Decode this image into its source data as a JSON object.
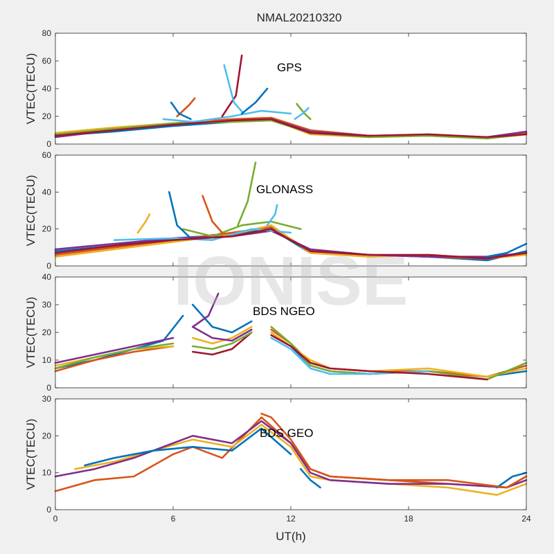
{
  "figure": {
    "title": "NMAL20210320",
    "xlabel": "UT(h)",
    "watermark": "IONISE"
  },
  "colors": [
    "#0072BD",
    "#D95319",
    "#EDB120",
    "#7E2F8E",
    "#77AC30",
    "#4DBEEE",
    "#A2142F"
  ],
  "chart_data": [
    {
      "type": "line",
      "title": "GPS",
      "ylabel": "VTEC(TECU)",
      "xlim": [
        0,
        24
      ],
      "ylim": [
        0,
        80
      ],
      "xticks": [
        0,
        6,
        12,
        18,
        24
      ],
      "yticks": [
        0,
        20,
        40,
        60,
        80
      ],
      "grid": false,
      "series": [
        {
          "color": "#0072BD",
          "x": [
            0,
            3,
            6,
            9,
            11,
            13,
            16,
            19,
            22,
            24
          ],
          "y": [
            6,
            9,
            13,
            16,
            18,
            8,
            6,
            6,
            5,
            8
          ]
        },
        {
          "color": "#D95319",
          "x": [
            0,
            3,
            6,
            9,
            11,
            13,
            16,
            19,
            22,
            24
          ],
          "y": [
            7,
            11,
            15,
            18,
            19,
            10,
            6,
            7,
            5,
            8
          ]
        },
        {
          "color": "#EDB120",
          "x": [
            0,
            3,
            6,
            9,
            11,
            13,
            16,
            19,
            22,
            24
          ],
          "y": [
            8,
            12,
            15,
            17,
            18,
            7,
            5,
            6,
            4,
            7
          ]
        },
        {
          "color": "#7E2F8E",
          "x": [
            0,
            3,
            6,
            9,
            11,
            13,
            16,
            19,
            22,
            24
          ],
          "y": [
            5,
            10,
            14,
            17,
            18,
            9,
            6,
            6,
            5,
            9
          ]
        },
        {
          "color": "#77AC30",
          "x": [
            0,
            3,
            6,
            9,
            11,
            13,
            16,
            19,
            22,
            24
          ],
          "y": [
            7,
            11,
            15,
            16,
            17,
            8,
            5,
            6,
            4,
            7
          ]
        },
        {
          "color": "#4DBEEE",
          "x": [
            5.5,
            7,
            9,
            10.5,
            12
          ],
          "y": [
            18,
            16,
            20,
            24,
            22
          ]
        },
        {
          "color": "#A2142F",
          "x": [
            0,
            3,
            6,
            9,
            11,
            13,
            16,
            19,
            22,
            24
          ],
          "y": [
            6,
            10,
            14,
            17,
            18,
            8,
            6,
            7,
            5,
            7
          ]
        },
        {
          "color": "#A2142F",
          "x": [
            8.5,
            9.2,
            9.5
          ],
          "y": [
            20,
            35,
            64
          ]
        },
        {
          "color": "#4DBEEE",
          "x": [
            8.6,
            9.1,
            9.6
          ],
          "y": [
            57,
            30,
            22
          ]
        },
        {
          "color": "#0072BD",
          "x": [
            9.5,
            10.2,
            10.8
          ],
          "y": [
            22,
            30,
            40
          ]
        },
        {
          "color": "#D95319",
          "x": [
            6.2,
            6.8,
            7.1
          ],
          "y": [
            20,
            28,
            33
          ]
        },
        {
          "color": "#0072BD",
          "x": [
            5.9,
            6.3,
            6.9
          ],
          "y": [
            30,
            22,
            18
          ]
        },
        {
          "color": "#77AC30",
          "x": [
            12.3,
            12.7,
            13
          ],
          "y": [
            29,
            22,
            18
          ]
        },
        {
          "color": "#4DBEEE",
          "x": [
            12.2,
            12.6,
            12.9
          ],
          "y": [
            18,
            22,
            26
          ]
        }
      ]
    },
    {
      "type": "line",
      "title": "GLONASS",
      "ylabel": "VTEC(TECU)",
      "xlim": [
        0,
        24
      ],
      "ylim": [
        0,
        60
      ],
      "xticks": [
        0,
        6,
        12,
        18,
        24
      ],
      "yticks": [
        0,
        20,
        40,
        60
      ],
      "grid": false,
      "series": [
        {
          "color": "#0072BD",
          "x": [
            0,
            3,
            6,
            9,
            11,
            13,
            16,
            19,
            22,
            24
          ],
          "y": [
            8,
            11,
            15,
            17,
            20,
            7,
            6,
            5,
            3,
            8
          ]
        },
        {
          "color": "#D95319",
          "x": [
            0,
            3,
            6,
            9,
            11,
            13,
            16,
            19,
            22,
            24
          ],
          "y": [
            6,
            10,
            14,
            18,
            21,
            8,
            6,
            5,
            4,
            7
          ]
        },
        {
          "color": "#EDB120",
          "x": [
            0,
            3,
            6,
            9,
            11,
            13,
            16,
            19,
            22,
            24
          ],
          "y": [
            5,
            9,
            13,
            17,
            22,
            7,
            5,
            6,
            4,
            6
          ]
        },
        {
          "color": "#7E2F8E",
          "x": [
            0,
            3,
            6,
            9,
            11,
            13,
            16,
            19,
            22,
            24
          ],
          "y": [
            9,
            12,
            15,
            16,
            19,
            9,
            6,
            5,
            5,
            7
          ]
        },
        {
          "color": "#77AC30",
          "x": [
            6.5,
            8,
            9.5,
            11,
            12.5
          ],
          "y": [
            20,
            16,
            22,
            24,
            20
          ]
        },
        {
          "color": "#4DBEEE",
          "x": [
            3,
            6,
            8,
            10,
            12
          ],
          "y": [
            14,
            15,
            14,
            20,
            18
          ]
        },
        {
          "color": "#A2142F",
          "x": [
            0,
            3,
            6,
            9,
            11,
            13,
            16,
            19,
            22,
            24
          ],
          "y": [
            7,
            11,
            14,
            16,
            20,
            8,
            6,
            6,
            4,
            7
          ]
        },
        {
          "color": "#77AC30",
          "x": [
            9.3,
            9.8,
            10.2
          ],
          "y": [
            22,
            35,
            56
          ]
        },
        {
          "color": "#0072BD",
          "x": [
            5.8,
            6.2,
            6.8
          ],
          "y": [
            40,
            22,
            16
          ]
        },
        {
          "color": "#D95319",
          "x": [
            7.5,
            8,
            8.5
          ],
          "y": [
            38,
            24,
            18
          ]
        },
        {
          "color": "#4DBEEE",
          "x": [
            10.8,
            11.2,
            11.3
          ],
          "y": [
            22,
            28,
            33
          ]
        },
        {
          "color": "#EDB120",
          "x": [
            4.2,
            4.6,
            4.8
          ],
          "y": [
            18,
            24,
            28
          ]
        },
        {
          "color": "#0072BD",
          "x": [
            22,
            23,
            24
          ],
          "y": [
            5,
            7,
            12
          ]
        }
      ]
    },
    {
      "type": "line",
      "title": "BDS NGEO",
      "ylabel": "VTEC(TECU)",
      "xlim": [
        0,
        24
      ],
      "ylim": [
        0,
        40
      ],
      "xticks": [
        0,
        6,
        12,
        18,
        24
      ],
      "yticks": [
        0,
        10,
        20,
        30,
        40
      ],
      "grid": false,
      "series": [
        {
          "color": "#0072BD",
          "x": [
            0,
            2,
            4,
            5.5,
            6.5
          ],
          "y": [
            7,
            10,
            14,
            17,
            26
          ]
        },
        {
          "color": "#D95319",
          "x": [
            0,
            2,
            4,
            6
          ],
          "y": [
            6,
            10,
            13,
            15
          ]
        },
        {
          "color": "#EDB120",
          "x": [
            0,
            2,
            4,
            6
          ],
          "y": [
            8,
            11,
            14,
            15
          ]
        },
        {
          "color": "#7E2F8E",
          "x": [
            0,
            2,
            4,
            6
          ],
          "y": [
            9,
            12,
            15,
            18
          ]
        },
        {
          "color": "#77AC30",
          "x": [
            0,
            2,
            4,
            6
          ],
          "y": [
            7,
            11,
            14,
            16
          ]
        },
        {
          "color": "#A2142F",
          "x": [
            7,
            8,
            9,
            10
          ],
          "y": [
            13,
            12,
            14,
            20
          ]
        },
        {
          "color": "#77AC30",
          "x": [
            7,
            8,
            9,
            10
          ],
          "y": [
            15,
            14,
            16,
            20
          ]
        },
        {
          "color": "#EDB120",
          "x": [
            7,
            8,
            9,
            10
          ],
          "y": [
            18,
            16,
            18,
            22
          ]
        },
        {
          "color": "#7E2F8E",
          "x": [
            7,
            8,
            9,
            10
          ],
          "y": [
            22,
            18,
            17,
            21
          ]
        },
        {
          "color": "#0072BD",
          "x": [
            7,
            8,
            9,
            10
          ],
          "y": [
            30,
            22,
            20,
            24
          ]
        },
        {
          "color": "#7E2F8E",
          "x": [
            7,
            7.8,
            8.3
          ],
          "y": [
            22,
            26,
            34
          ]
        },
        {
          "color": "#0072BD",
          "x": [
            11,
            12,
            13,
            14,
            16,
            19,
            22,
            24
          ],
          "y": [
            19,
            15,
            8,
            6,
            5,
            6,
            4,
            6
          ]
        },
        {
          "color": "#D95319",
          "x": [
            11,
            12,
            13,
            14,
            16,
            19,
            22,
            24
          ],
          "y": [
            21,
            16,
            9,
            7,
            6,
            6,
            4,
            8
          ]
        },
        {
          "color": "#EDB120",
          "x": [
            11,
            12,
            13,
            14,
            16,
            19,
            22,
            24
          ],
          "y": [
            20,
            15,
            10,
            7,
            6,
            7,
            4,
            7
          ]
        },
        {
          "color": "#77AC30",
          "x": [
            11,
            12,
            13,
            14,
            16,
            19,
            22,
            24
          ],
          "y": [
            22,
            16,
            8,
            6,
            5,
            6,
            3,
            9
          ]
        },
        {
          "color": "#4DBEEE",
          "x": [
            11,
            12,
            13,
            14,
            16,
            19
          ],
          "y": [
            18,
            14,
            7,
            5,
            5,
            6
          ]
        },
        {
          "color": "#A2142F",
          "x": [
            11,
            12,
            13,
            14,
            16,
            19,
            22
          ],
          "y": [
            19,
            15,
            9,
            7,
            6,
            5,
            3
          ]
        }
      ]
    },
    {
      "type": "line",
      "title": "BDS GEO",
      "ylabel": "VTEC(TECU)",
      "xlim": [
        0,
        24
      ],
      "ylim": [
        0,
        30
      ],
      "xticks": [
        0,
        6,
        12,
        18,
        24
      ],
      "yticks": [
        0,
        10,
        20,
        30
      ],
      "grid": false,
      "series": [
        {
          "color": "#D95319",
          "x": [
            0,
            2,
            4,
            6,
            7,
            8.5,
            10.5,
            12,
            13,
            14,
            17,
            20,
            23,
            24
          ],
          "y": [
            5,
            8,
            9,
            15,
            17,
            14,
            25,
            18,
            11,
            9,
            8,
            7,
            6,
            9
          ]
        },
        {
          "color": "#EDB120",
          "x": [
            1,
            3,
            5,
            7,
            9,
            10.5,
            12,
            13,
            14,
            17,
            20,
            22.5,
            24
          ],
          "y": [
            11,
            13,
            16,
            19,
            17,
            23,
            17,
            9,
            8,
            7,
            6,
            4,
            7
          ]
        },
        {
          "color": "#7E2F8E",
          "x": [
            0,
            2,
            4,
            7,
            9,
            10.5,
            12,
            13,
            14,
            17,
            20,
            23,
            24
          ],
          "y": [
            9,
            11,
            14,
            20,
            18,
            24,
            18,
            10,
            8,
            7,
            7,
            6,
            8
          ]
        },
        {
          "color": "#0072BD",
          "x": [
            1.5,
            3,
            5,
            7,
            9,
            10.5,
            12
          ],
          "y": [
            12,
            14,
            16,
            17,
            16,
            22,
            15
          ]
        },
        {
          "color": "#0072BD",
          "x": [
            12.5,
            13,
            13.5
          ],
          "y": [
            11,
            8,
            6
          ]
        },
        {
          "color": "#0072BD",
          "x": [
            22.5,
            23.3,
            24
          ],
          "y": [
            6,
            9,
            10
          ]
        },
        {
          "color": "#D95319",
          "x": [
            10.5,
            11,
            12,
            13,
            14,
            17,
            20,
            23,
            24
          ],
          "y": [
            26,
            25,
            19,
            11,
            9,
            8,
            8,
            6,
            9
          ]
        }
      ]
    }
  ]
}
